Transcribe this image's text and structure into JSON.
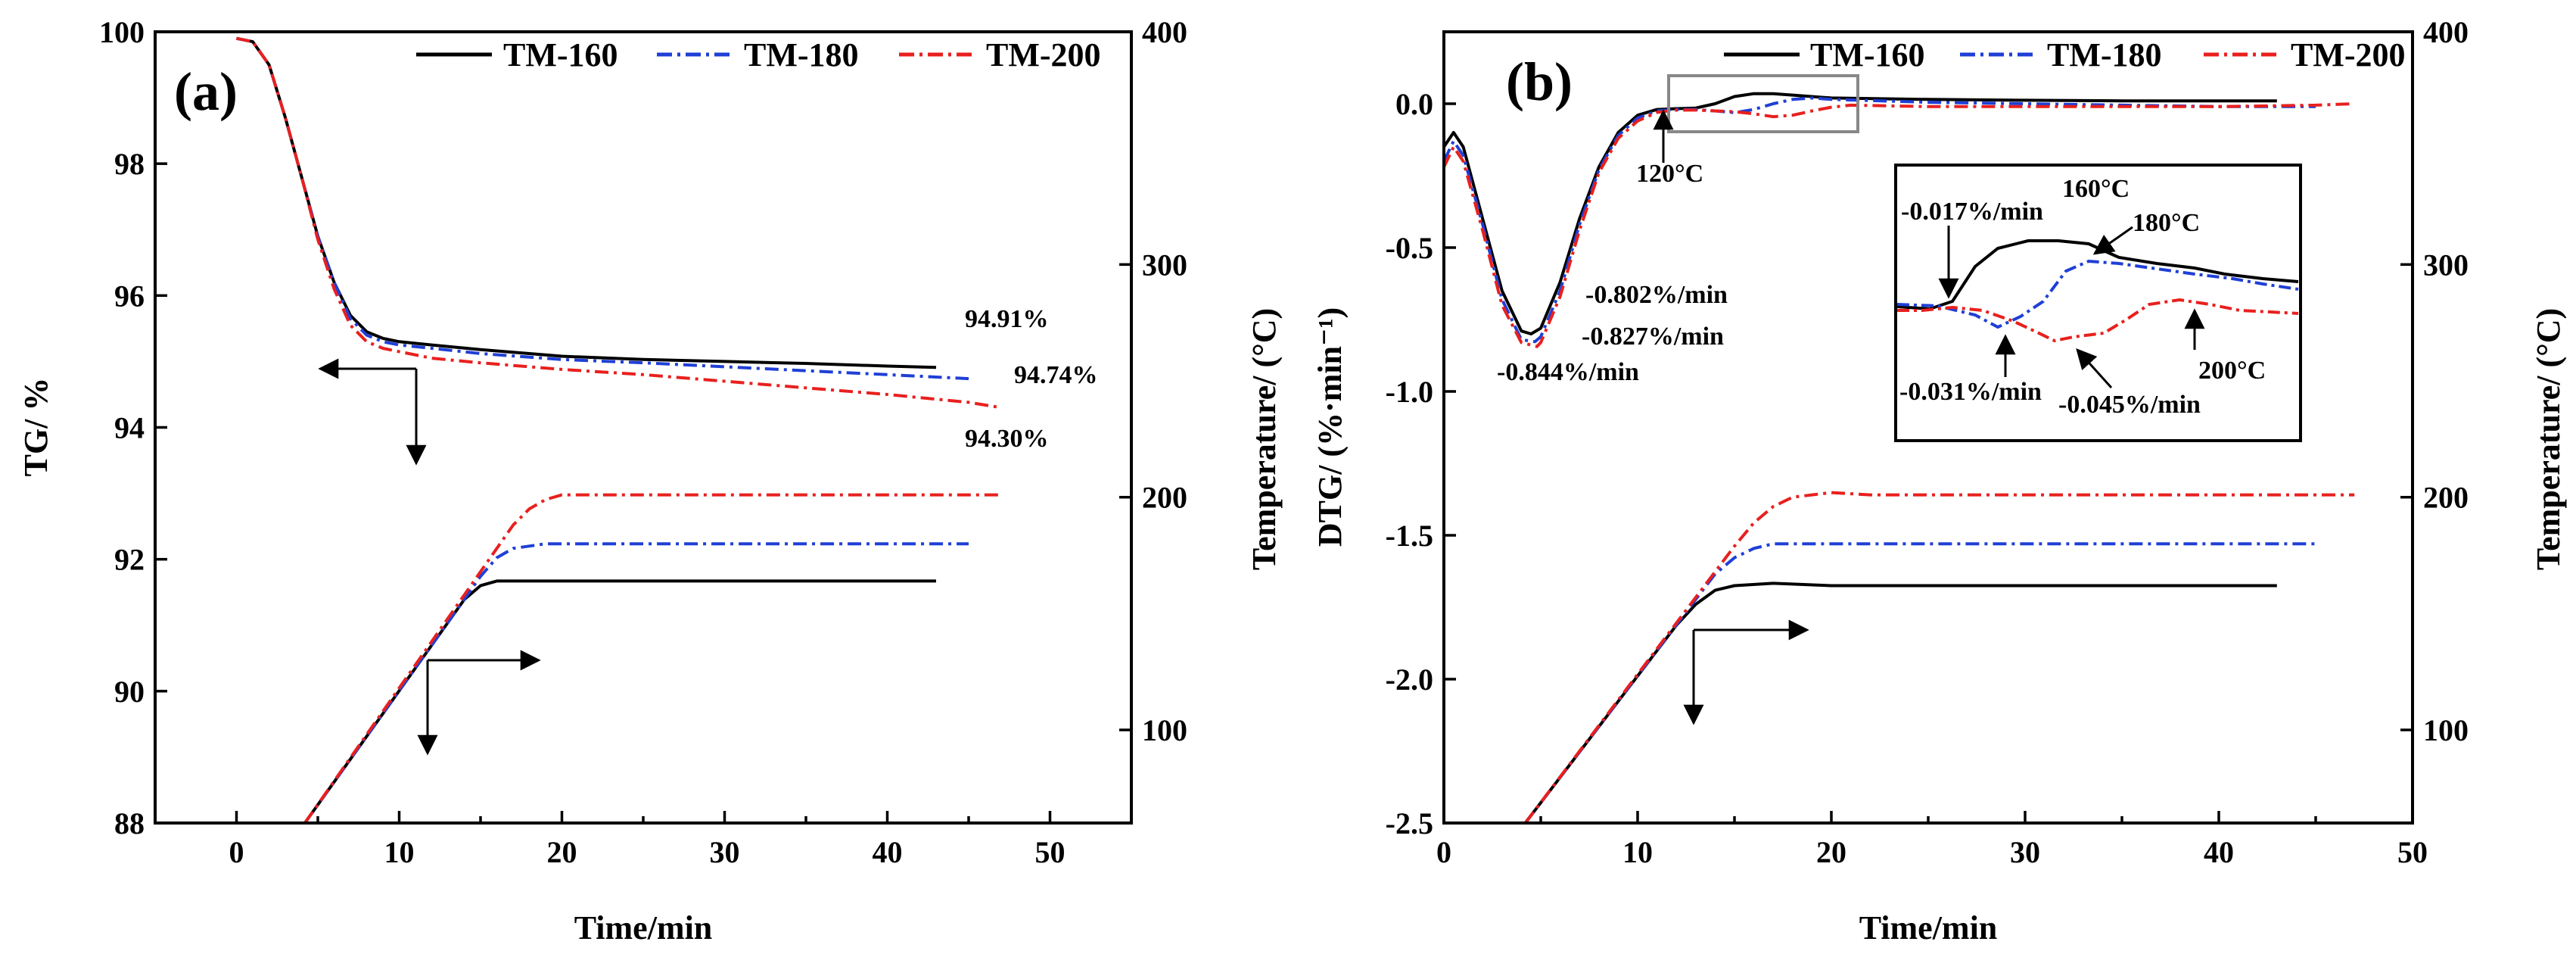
{
  "chart_data": [
    {
      "panel": "(a)",
      "type": "line",
      "xlabel": "Time/min",
      "ylabel_left": "TG/ %",
      "ylabel_right": "Temperature/ (°C)",
      "xlim": [
        -5,
        55
      ],
      "ylim_left": [
        88,
        100
      ],
      "ylim_right": [
        60,
        400
      ],
      "xticks": [
        "0",
        "10",
        "20",
        "30",
        "40",
        "50"
      ],
      "yticks_left": [
        "88",
        "90",
        "92",
        "94",
        "96",
        "98",
        "100"
      ],
      "yticks_right": [
        "100",
        "200",
        "300",
        "400"
      ],
      "legend": [
        "TM-160",
        "TM-180",
        "TM-200"
      ],
      "series": [
        {
          "name": "TM-160",
          "color": "#000000",
          "dash": "solid",
          "axis": "left",
          "x": [
            0,
            1,
            2,
            3,
            4,
            5,
            6,
            7,
            8,
            9,
            10,
            12,
            15,
            20,
            25,
            30,
            35,
            40,
            43
          ],
          "y": [
            99.9,
            99.85,
            99.5,
            98.7,
            97.8,
            96.9,
            96.2,
            95.7,
            95.45,
            95.35,
            95.3,
            95.25,
            95.18,
            95.08,
            95.03,
            95.0,
            94.97,
            94.93,
            94.91
          ]
        },
        {
          "name": "TM-180",
          "color": "#1f3fd6",
          "dash": "dashdot",
          "axis": "left",
          "x": [
            0,
            1,
            2,
            3,
            4,
            5,
            6,
            7,
            8,
            9,
            10,
            12,
            15,
            20,
            25,
            30,
            35,
            40,
            45
          ],
          "y": [
            99.9,
            99.85,
            99.5,
            98.7,
            97.8,
            96.9,
            96.2,
            95.65,
            95.4,
            95.3,
            95.25,
            95.2,
            95.12,
            95.03,
            94.98,
            94.92,
            94.86,
            94.8,
            94.74
          ]
        },
        {
          "name": "TM-200",
          "color": "#e8201e",
          "dash": "dashdot",
          "axis": "left",
          "x": [
            0,
            1,
            2,
            3,
            4,
            5,
            6,
            7,
            8,
            9,
            10,
            12,
            15,
            20,
            25,
            30,
            35,
            40,
            45,
            47
          ],
          "y": [
            99.9,
            99.85,
            99.5,
            98.7,
            97.8,
            96.85,
            96.1,
            95.55,
            95.3,
            95.2,
            95.15,
            95.05,
            94.98,
            94.88,
            94.8,
            94.7,
            94.6,
            94.5,
            94.38,
            94.3
          ]
        },
        {
          "name": "TM-160 temperature",
          "color": "#000000",
          "dash": "solid",
          "axis": "right",
          "x": [
            4.2,
            14,
            15,
            16,
            18,
            20,
            43
          ],
          "y": [
            60,
            156,
            162,
            164,
            164,
            164,
            164
          ]
        },
        {
          "name": "TM-180 temperature",
          "color": "#1f3fd6",
          "dash": "dashdot",
          "axis": "right",
          "x": [
            4.2,
            15,
            16,
            17,
            19,
            21,
            45
          ],
          "y": [
            60,
            166,
            174,
            178,
            180,
            180,
            180
          ]
        },
        {
          "name": "TM-200 temperature",
          "color": "#e8201e",
          "dash": "dashdot",
          "axis": "right",
          "x": [
            4.2,
            16,
            17,
            18,
            19,
            20,
            22,
            47
          ],
          "y": [
            60,
            178,
            188,
            195,
            199,
            201,
            201,
            201
          ]
        }
      ],
      "annotations": [
        "94.91%",
        "94.74%",
        "94.30%"
      ]
    },
    {
      "panel": "(b)",
      "type": "line",
      "xlabel": "Time/min",
      "ylabel_left": "DTG/ (%·min⁻¹)",
      "ylabel_right": "Temperature/ (°C)",
      "xlim": [
        0,
        50
      ],
      "ylim_left": [
        -2.5,
        0.25
      ],
      "ylim_right": [
        60,
        400
      ],
      "xticks": [
        "0",
        "10",
        "20",
        "30",
        "40",
        "50"
      ],
      "yticks_left": [
        "-2.5",
        "-2.0",
        "-1.5",
        "-1.0",
        "-0.5",
        "0.0"
      ],
      "yticks_right": [
        "100",
        "200",
        "300",
        "400"
      ],
      "legend": [
        "TM-160",
        "TM-180",
        "TM-200"
      ],
      "series": [
        {
          "name": "TM-160",
          "color": "#000000",
          "dash": "solid",
          "axis": "left",
          "x": [
            0,
            0.5,
            1,
            2,
            3,
            4,
            4.5,
            5,
            6,
            7,
            8,
            9,
            10,
            11,
            12,
            13,
            14,
            15,
            16,
            17,
            18,
            20,
            25,
            30,
            35,
            40,
            43
          ],
          "y": [
            -0.15,
            -0.1,
            -0.15,
            -0.4,
            -0.65,
            -0.79,
            -0.8,
            -0.78,
            -0.62,
            -0.4,
            -0.22,
            -0.1,
            -0.04,
            -0.02,
            -0.017,
            -0.015,
            0.0,
            0.025,
            0.035,
            0.035,
            0.03,
            0.02,
            0.015,
            0.012,
            0.01,
            0.01,
            0.01
          ]
        },
        {
          "name": "TM-180",
          "color": "#1f3fd6",
          "dash": "dashdot",
          "axis": "left",
          "x": [
            0,
            0.5,
            1,
            2,
            3,
            4,
            4.7,
            5,
            6,
            7,
            8,
            9,
            10,
            11,
            12,
            13,
            14,
            15,
            16,
            17,
            18,
            19,
            20,
            25,
            30,
            35,
            40,
            45
          ],
          "y": [
            -0.2,
            -0.13,
            -0.18,
            -0.42,
            -0.68,
            -0.82,
            -0.827,
            -0.81,
            -0.65,
            -0.42,
            -0.23,
            -0.11,
            -0.05,
            -0.025,
            -0.02,
            -0.02,
            -0.025,
            -0.031,
            -0.02,
            0.0,
            0.015,
            0.02,
            0.015,
            0.005,
            0.0,
            -0.005,
            -0.01,
            -0.01
          ]
        },
        {
          "name": "TM-200",
          "color": "#e8201e",
          "dash": "dashdot",
          "axis": "left",
          "x": [
            0,
            0.5,
            1,
            2,
            3,
            4,
            4.8,
            5,
            6,
            7,
            8,
            9,
            10,
            11,
            12,
            13,
            14,
            15,
            16,
            17,
            18,
            19,
            20,
            21,
            25,
            30,
            35,
            40,
            45,
            47
          ],
          "y": [
            -0.22,
            -0.15,
            -0.2,
            -0.44,
            -0.7,
            -0.83,
            -0.844,
            -0.83,
            -0.67,
            -0.44,
            -0.24,
            -0.12,
            -0.06,
            -0.03,
            -0.022,
            -0.022,
            -0.025,
            -0.028,
            -0.035,
            -0.045,
            -0.04,
            -0.025,
            -0.012,
            -0.005,
            -0.01,
            -0.01,
            -0.01,
            -0.01,
            -0.005,
            0.0
          ]
        },
        {
          "name": "TM-160 temperature",
          "color": "#000000",
          "dash": "solid",
          "axis": "right",
          "x": [
            4.2,
            12,
            13,
            14,
            15,
            17,
            20,
            43
          ],
          "y": [
            60,
            145,
            154,
            160,
            162,
            163,
            162,
            162
          ]
        },
        {
          "name": "TM-180 temperature",
          "color": "#1f3fd6",
          "dash": "dashdot",
          "axis": "right",
          "x": [
            4.2,
            14,
            15,
            16,
            17,
            18,
            20,
            45
          ],
          "y": [
            60,
            167,
            174,
            178,
            180,
            180,
            180,
            180
          ]
        },
        {
          "name": "TM-200 temperature",
          "color": "#e8201e",
          "dash": "dashdot",
          "axis": "right",
          "x": [
            4.2,
            15,
            16,
            17,
            18,
            19,
            20,
            22,
            47
          ],
          "y": [
            60,
            179,
            189,
            196,
            200,
            201,
            202,
            201,
            201
          ]
        }
      ],
      "annotations": [
        "120°C",
        "-0.802%/min",
        "-0.827%/min",
        "-0.844%/min"
      ],
      "inset": {
        "annotations": [
          "-0.017%/min",
          "160°C",
          "180°C",
          "200°C",
          "-0.031%/min",
          "-0.045%/min"
        ]
      }
    }
  ]
}
